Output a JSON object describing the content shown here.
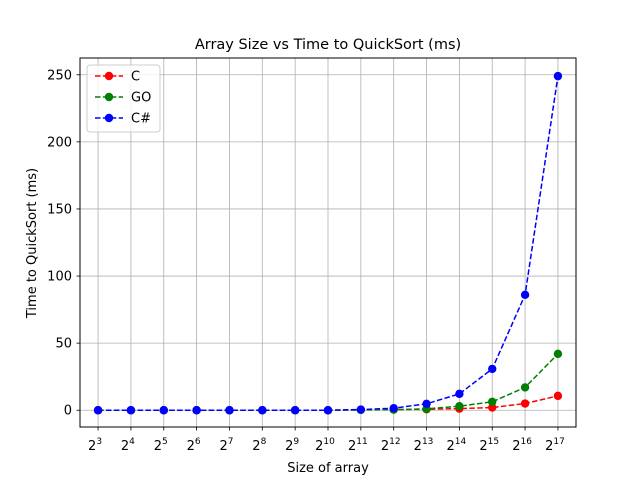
{
  "chart_data": {
    "type": "line",
    "title": "Array Size vs Time to QuickSort (ms)",
    "xlabel": "Size of array",
    "ylabel": "Time to QuickSort (ms)",
    "x_tick_base": "2",
    "x_exponents": [
      "3",
      "4",
      "5",
      "6",
      "7",
      "8",
      "9",
      "10",
      "11",
      "12",
      "13",
      "14",
      "15",
      "16",
      "17"
    ],
    "x": [
      3,
      4,
      5,
      6,
      7,
      8,
      9,
      10,
      11,
      12,
      13,
      14,
      15,
      16,
      17
    ],
    "xlim": [
      2.45,
      17.55
    ],
    "ylim": [
      -12.5,
      262.5
    ],
    "yticks": [
      0,
      50,
      100,
      150,
      200,
      250
    ],
    "grid": true,
    "legend_position": "top-left",
    "series": [
      {
        "name": "C",
        "color": "#ff0000",
        "values": [
          0,
          0,
          0,
          0,
          0,
          0,
          0,
          0,
          0.3,
          0.5,
          0.7,
          1.2,
          2.0,
          5.0,
          10.7
        ]
      },
      {
        "name": "GO",
        "color": "#008000",
        "values": [
          0,
          0,
          0,
          0,
          0,
          0,
          0,
          0,
          0.2,
          0.4,
          1.0,
          3.0,
          6.3,
          17.0,
          42.0
        ]
      },
      {
        "name": "C#",
        "color": "#0000ff",
        "values": [
          0,
          0,
          0,
          0,
          0,
          0,
          0,
          0,
          0.5,
          1.5,
          4.8,
          12.2,
          30.8,
          86.0,
          249.0
        ]
      }
    ]
  }
}
